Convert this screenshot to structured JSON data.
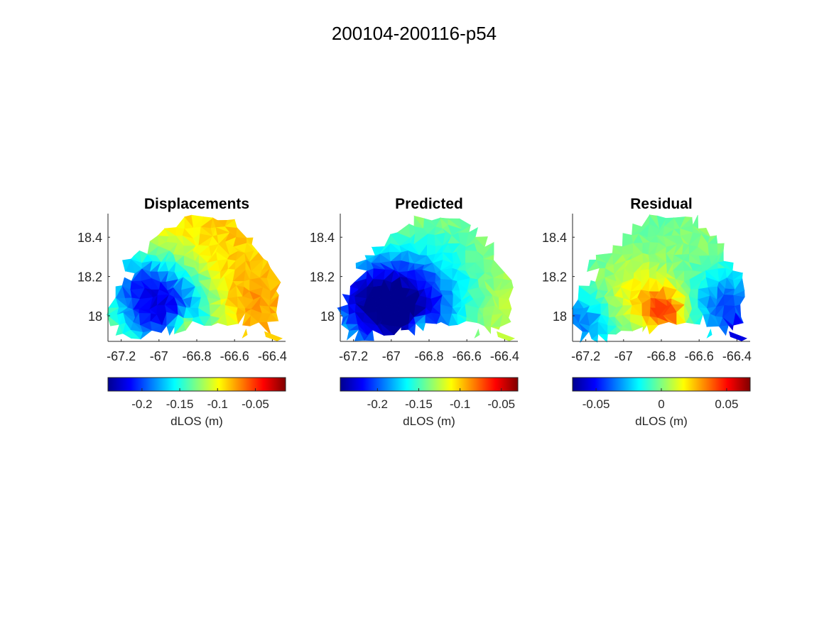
{
  "figure": {
    "title": "200104-200116-p54"
  },
  "colormap": {
    "name": "jet",
    "stops": [
      "#00008f",
      "#0000ff",
      "#0080ff",
      "#00ffff",
      "#80ff80",
      "#ffff00",
      "#ff8000",
      "#ff0000",
      "#800000"
    ]
  },
  "chart_data": [
    {
      "type": "heatmap",
      "title": "Displacements",
      "xlabel": "",
      "ylabel": "",
      "xlim": [
        -67.27,
        -66.33
      ],
      "ylim": [
        17.87,
        18.52
      ],
      "xticks": [
        -67.2,
        -67,
        -66.8,
        -66.6,
        -66.4
      ],
      "xtick_labels": [
        "-67.2",
        "-67",
        "-66.8",
        "-66.6",
        "-66.4"
      ],
      "yticks": [
        18,
        18.2,
        18.4
      ],
      "ytick_labels": [
        "18",
        "18.2",
        "18.4"
      ],
      "colorbar": {
        "label": "dLOS (m)",
        "clim": [
          -0.245,
          -0.01
        ],
        "ticks": [
          -0.2,
          -0.15,
          -0.1,
          -0.05
        ],
        "tick_labels": [
          "-0.2",
          "-0.15",
          "-0.1",
          "-0.05"
        ]
      },
      "field": {
        "background": -0.1,
        "sources": [
          {
            "lon": -66.97,
            "lat": 18.04,
            "value": -0.115,
            "radius": 0.25
          },
          {
            "lon": -67.15,
            "lat": 18.18,
            "value": -0.045,
            "radius": 0.18
          },
          {
            "lon": -66.72,
            "lat": 18.38,
            "value": 0.015,
            "radius": 0.3
          },
          {
            "lon": -66.5,
            "lat": 18.05,
            "value": 0.025,
            "radius": 0.22
          },
          {
            "lon": -66.87,
            "lat": 17.96,
            "value": 0.06,
            "radius": 0.06
          }
        ]
      }
    },
    {
      "type": "heatmap",
      "title": "Predicted",
      "xlabel": "",
      "ylabel": "",
      "xlim": [
        -67.27,
        -66.33
      ],
      "ylim": [
        17.87,
        18.52
      ],
      "xticks": [
        -67.2,
        -67,
        -66.8,
        -66.6,
        -66.4
      ],
      "xtick_labels": [
        "-67.2",
        "-67",
        "-66.8",
        "-66.6",
        "-66.4"
      ],
      "yticks": [
        18,
        18.2,
        18.4
      ],
      "ytick_labels": [
        "18",
        "18.2",
        "18.4"
      ],
      "colorbar": {
        "label": "dLOS (m)",
        "clim": [
          -0.245,
          -0.03
        ],
        "ticks": [
          -0.2,
          -0.15,
          -0.1,
          -0.05
        ],
        "tick_labels": [
          "-0.2",
          "-0.15",
          "-0.1",
          "-0.05"
        ]
      },
      "field": {
        "background": -0.12,
        "sources": [
          {
            "lon": -66.93,
            "lat": 18.03,
            "value": -0.12,
            "radius": 0.28
          },
          {
            "lon": -67.18,
            "lat": 18.1,
            "value": -0.06,
            "radius": 0.22
          },
          {
            "lon": -66.65,
            "lat": 18.35,
            "value": -0.02,
            "radius": 0.3
          },
          {
            "lon": -66.85,
            "lat": 17.96,
            "value": 0.05,
            "radius": 0.05
          }
        ]
      }
    },
    {
      "type": "heatmap",
      "title": "Residual",
      "xlabel": "",
      "ylabel": "",
      "xlim": [
        -67.27,
        -66.33
      ],
      "ylim": [
        17.87,
        18.52
      ],
      "xticks": [
        -67.2,
        -67,
        -66.8,
        -66.6,
        -66.4
      ],
      "xtick_labels": [
        "-67.2",
        "-67",
        "-66.8",
        "-66.6",
        "-66.4"
      ],
      "yticks": [
        18,
        18.2,
        18.4
      ],
      "ytick_labels": [
        "18",
        "18.2",
        "18.4"
      ],
      "colorbar": {
        "label": "dLOS (m)",
        "clim": [
          -0.068,
          0.068
        ],
        "ticks": [
          -0.05,
          0,
          0.05
        ],
        "tick_labels": [
          "-0.05",
          "0",
          "0.05"
        ]
      },
      "field": {
        "background": -0.005,
        "sources": [
          {
            "lon": -66.78,
            "lat": 18.03,
            "value": 0.045,
            "radius": 0.12
          },
          {
            "lon": -66.95,
            "lat": 18.12,
            "value": 0.02,
            "radius": 0.18
          },
          {
            "lon": -67.22,
            "lat": 17.97,
            "value": -0.03,
            "radius": 0.15
          },
          {
            "lon": -66.45,
            "lat": 18.05,
            "value": -0.035,
            "radius": 0.18
          },
          {
            "lon": -66.62,
            "lat": 18.38,
            "value": 0.006,
            "radius": 0.2
          },
          {
            "lon": -66.4,
            "lat": 17.92,
            "value": -0.04,
            "radius": 0.06
          }
        ]
      }
    }
  ]
}
